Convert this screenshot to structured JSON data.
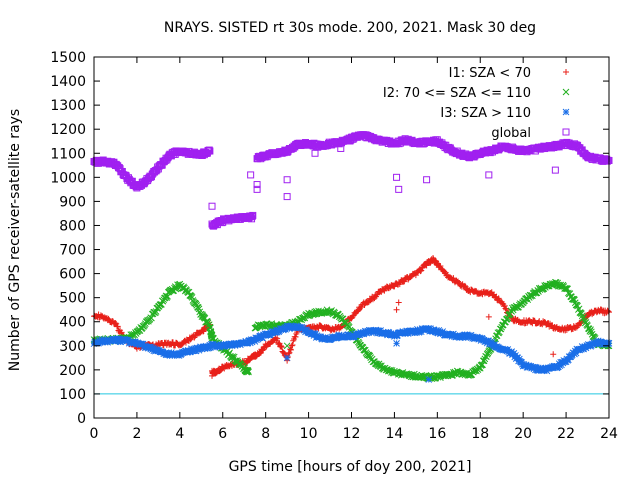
{
  "chart_data": {
    "type": "scatter",
    "title": "NRAYS. SISTED rt 30s mode. 200, 2021. Mask 30 deg",
    "xlabel": "GPS time [hours of doy 200, 2021]",
    "ylabel": "Number of GPS receiver-satellite rays",
    "xlim": [
      0,
      24
    ],
    "ylim": [
      0,
      1500
    ],
    "xticks": [
      0,
      2,
      4,
      6,
      8,
      10,
      12,
      14,
      16,
      18,
      20,
      22,
      24
    ],
    "yticks": [
      0,
      100,
      200,
      300,
      400,
      500,
      600,
      700,
      800,
      900,
      1000,
      1100,
      1200,
      1300,
      1400,
      1500
    ],
    "reference_line": {
      "y": 100,
      "color": "#22c8e0"
    },
    "legend_position": "top-right",
    "series": [
      {
        "name": "I1: SZA < 70",
        "marker": "plus",
        "color": "#e8201a",
        "points": [
          [
            0,
            430
          ],
          [
            0.5,
            415
          ],
          [
            1,
            390
          ],
          [
            1.5,
            320
          ],
          [
            2,
            295
          ],
          [
            2.5,
            300
          ],
          [
            3,
            305
          ],
          [
            3.5,
            310
          ],
          [
            4,
            305
          ],
          [
            4.5,
            330
          ],
          [
            5,
            360
          ],
          [
            5.4,
            385
          ],
          [
            5.5,
            190
          ],
          [
            5.7,
            190
          ],
          [
            6,
            210
          ],
          [
            6.5,
            225
          ],
          [
            7,
            230
          ],
          [
            7.4,
            255
          ],
          [
            7.6,
            260
          ],
          [
            8,
            300
          ],
          [
            8.5,
            330
          ],
          [
            9,
            245
          ],
          [
            9.5,
            370
          ],
          [
            10,
            370
          ],
          [
            10.5,
            380
          ],
          [
            11,
            370
          ],
          [
            11.5,
            375
          ],
          [
            12,
            420
          ],
          [
            12.5,
            470
          ],
          [
            13,
            500
          ],
          [
            13.5,
            535
          ],
          [
            14,
            550
          ],
          [
            14.5,
            575
          ],
          [
            15,
            600
          ],
          [
            15.5,
            640
          ],
          [
            15.8,
            660
          ],
          [
            16,
            640
          ],
          [
            16.5,
            590
          ],
          [
            17,
            560
          ],
          [
            17.5,
            530
          ],
          [
            18,
            520
          ],
          [
            18.5,
            520
          ],
          [
            19,
            480
          ],
          [
            19.5,
            410
          ],
          [
            20,
            400
          ],
          [
            20.5,
            400
          ],
          [
            21,
            395
          ],
          [
            21.5,
            375
          ],
          [
            22,
            370
          ],
          [
            22.5,
            380
          ],
          [
            23,
            430
          ],
          [
            23.5,
            445
          ],
          [
            24,
            440
          ]
        ],
        "outliers": [
          [
            14.1,
            450
          ],
          [
            14.2,
            480
          ],
          [
            18.4,
            420
          ],
          [
            21.4,
            265
          ],
          [
            7.1,
            200
          ],
          [
            5.5,
            175
          ]
        ]
      },
      {
        "name": "I2: 70 <= SZA <= 110",
        "marker": "cross",
        "color": "#22b020",
        "points": [
          [
            0,
            320
          ],
          [
            0.5,
            325
          ],
          [
            1,
            325
          ],
          [
            1.5,
            330
          ],
          [
            2,
            355
          ],
          [
            2.5,
            400
          ],
          [
            3,
            460
          ],
          [
            3.5,
            520
          ],
          [
            4,
            555
          ],
          [
            4.5,
            510
          ],
          [
            5,
            430
          ],
          [
            5.4,
            380
          ],
          [
            5.5,
            330
          ],
          [
            6,
            290
          ],
          [
            6.5,
            250
          ],
          [
            7,
            205
          ],
          [
            7.2,
            190
          ],
          [
            7.5,
            380
          ],
          [
            8,
            385
          ],
          [
            8.5,
            385
          ],
          [
            9,
            385
          ],
          [
            9.5,
            400
          ],
          [
            10,
            430
          ],
          [
            10.5,
            440
          ],
          [
            11,
            445
          ],
          [
            11.5,
            420
          ],
          [
            12,
            360
          ],
          [
            12.5,
            290
          ],
          [
            13,
            240
          ],
          [
            13.5,
            205
          ],
          [
            14,
            190
          ],
          [
            14.5,
            180
          ],
          [
            15,
            175
          ],
          [
            15.5,
            170
          ],
          [
            16,
            170
          ],
          [
            16.5,
            180
          ],
          [
            17,
            190
          ],
          [
            17.5,
            180
          ],
          [
            18,
            210
          ],
          [
            18.5,
            290
          ],
          [
            19,
            380
          ],
          [
            19.5,
            450
          ],
          [
            20,
            480
          ],
          [
            20.5,
            520
          ],
          [
            21,
            545
          ],
          [
            21.5,
            560
          ],
          [
            22,
            540
          ],
          [
            22.5,
            470
          ],
          [
            23,
            380
          ],
          [
            23.5,
            310
          ],
          [
            24,
            300
          ]
        ],
        "outliers": [
          [
            5.5,
            345
          ],
          [
            9,
            300
          ]
        ]
      },
      {
        "name": "I3: SZA > 110",
        "marker": "star",
        "color": "#1a6ee8",
        "points": [
          [
            0,
            315
          ],
          [
            0.5,
            320
          ],
          [
            1,
            325
          ],
          [
            1.5,
            320
          ],
          [
            2,
            310
          ],
          [
            2.5,
            295
          ],
          [
            3,
            280
          ],
          [
            3.5,
            265
          ],
          [
            4,
            265
          ],
          [
            4.5,
            280
          ],
          [
            5,
            290
          ],
          [
            5.5,
            300
          ],
          [
            6,
            300
          ],
          [
            6.5,
            305
          ],
          [
            7,
            310
          ],
          [
            7.5,
            325
          ],
          [
            8,
            345
          ],
          [
            8.5,
            360
          ],
          [
            9,
            375
          ],
          [
            9.5,
            380
          ],
          [
            10,
            355
          ],
          [
            10.5,
            335
          ],
          [
            11,
            330
          ],
          [
            11.5,
            340
          ],
          [
            12,
            340
          ],
          [
            12.5,
            355
          ],
          [
            13,
            360
          ],
          [
            13.5,
            355
          ],
          [
            14,
            345
          ],
          [
            14.5,
            355
          ],
          [
            15,
            360
          ],
          [
            15.5,
            370
          ],
          [
            16,
            360
          ],
          [
            16.5,
            345
          ],
          [
            17,
            340
          ],
          [
            17.5,
            340
          ],
          [
            18,
            330
          ],
          [
            18.5,
            310
          ],
          [
            19,
            290
          ],
          [
            19.5,
            270
          ],
          [
            20,
            220
          ],
          [
            20.5,
            205
          ],
          [
            21,
            200
          ],
          [
            21.5,
            210
          ],
          [
            22,
            240
          ],
          [
            22.5,
            280
          ],
          [
            23,
            300
          ],
          [
            23.5,
            315
          ],
          [
            24,
            310
          ]
        ],
        "outliers": [
          [
            9,
            250
          ],
          [
            14.1,
            310
          ],
          [
            15.6,
            160
          ]
        ]
      },
      {
        "name": "global",
        "marker": "square",
        "color": "#a020f0",
        "points": [
          [
            0,
            1065
          ],
          [
            0.5,
            1065
          ],
          [
            1,
            1055
          ],
          [
            1.5,
            1000
          ],
          [
            2,
            960
          ],
          [
            2.5,
            990
          ],
          [
            3,
            1040
          ],
          [
            3.5,
            1090
          ],
          [
            4,
            1110
          ],
          [
            4.5,
            1100
          ],
          [
            5,
            1095
          ],
          [
            5.4,
            1110
          ],
          [
            5.5,
            800
          ],
          [
            6,
            820
          ],
          [
            6.5,
            830
          ],
          [
            7,
            830
          ],
          [
            7.4,
            835
          ],
          [
            7.6,
            1080
          ],
          [
            8,
            1090
          ],
          [
            8.5,
            1100
          ],
          [
            9,
            1110
          ],
          [
            9.5,
            1135
          ],
          [
            10,
            1140
          ],
          [
            10.5,
            1130
          ],
          [
            11,
            1140
          ],
          [
            11.5,
            1145
          ],
          [
            12,
            1160
          ],
          [
            12.5,
            1175
          ],
          [
            13,
            1160
          ],
          [
            13.5,
            1150
          ],
          [
            14,
            1140
          ],
          [
            14.5,
            1155
          ],
          [
            15,
            1145
          ],
          [
            15.5,
            1145
          ],
          [
            16,
            1150
          ],
          [
            16.5,
            1120
          ],
          [
            17,
            1100
          ],
          [
            17.5,
            1085
          ],
          [
            18,
            1100
          ],
          [
            18.5,
            1110
          ],
          [
            19,
            1125
          ],
          [
            19.5,
            1120
          ],
          [
            20,
            1110
          ],
          [
            20.5,
            1115
          ],
          [
            21,
            1125
          ],
          [
            21.5,
            1130
          ],
          [
            22,
            1140
          ],
          [
            22.5,
            1130
          ],
          [
            23,
            1085
          ],
          [
            23.5,
            1075
          ],
          [
            24,
            1070
          ]
        ],
        "outliers": [
          [
            5.5,
            880
          ],
          [
            7.3,
            1010
          ],
          [
            7.6,
            950
          ],
          [
            7.6,
            970
          ],
          [
            9,
            990
          ],
          [
            9,
            920
          ],
          [
            14.1,
            1000
          ],
          [
            14.2,
            950
          ],
          [
            15.5,
            990
          ],
          [
            18.4,
            1010
          ],
          [
            21.5,
            1030
          ],
          [
            10.3,
            1100
          ],
          [
            11.5,
            1120
          ]
        ]
      }
    ]
  }
}
